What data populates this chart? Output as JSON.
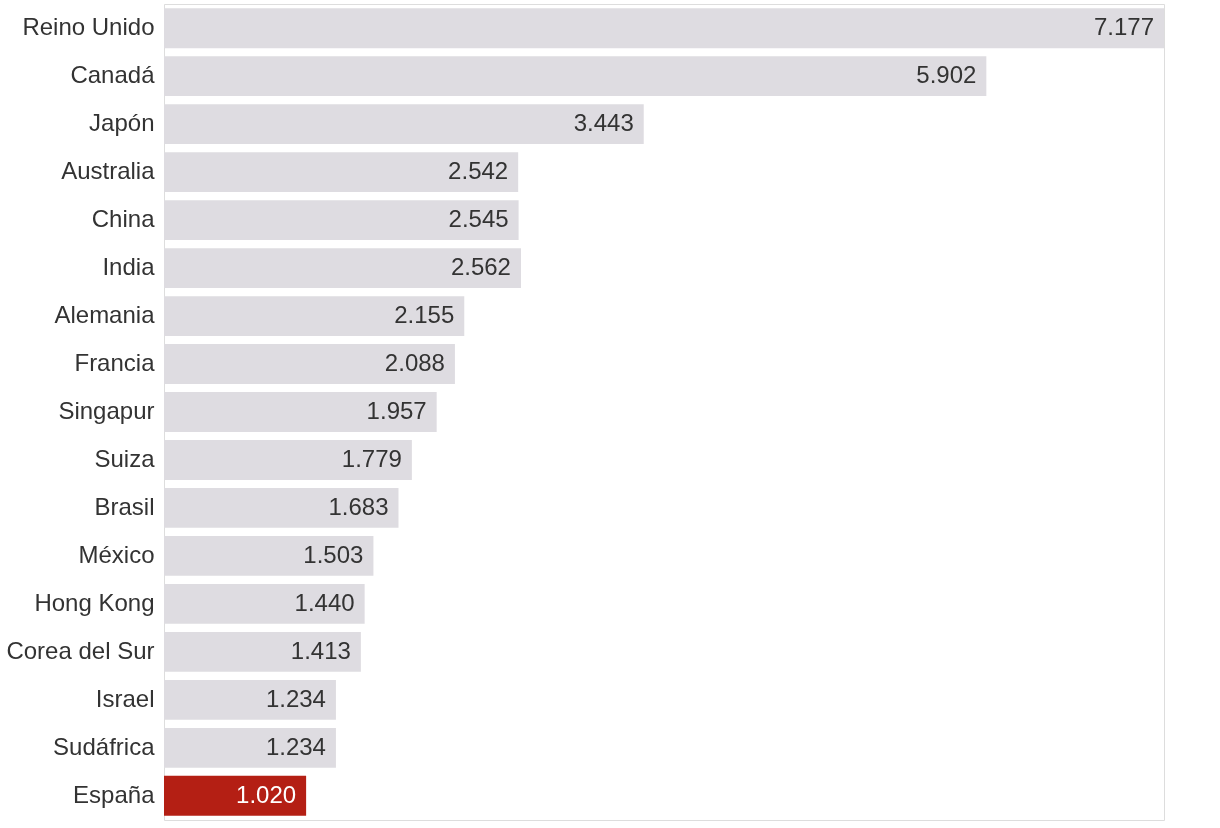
{
  "chart_data": {
    "type": "bar",
    "orientation": "horizontal",
    "categories": [
      "Reino Unido",
      "Canadá",
      "Japón",
      "Australia",
      "China",
      "India",
      "Alemania",
      "Francia",
      "Singapur",
      "Suiza",
      "Brasil",
      "México",
      "Hong Kong",
      "Corea del Sur",
      "Israel",
      "Sudáfrica",
      "España"
    ],
    "values": [
      7177,
      5902,
      3443,
      2542,
      2545,
      2562,
      2155,
      2088,
      1957,
      1779,
      1683,
      1503,
      1440,
      1413,
      1234,
      1234,
      1020
    ],
    "value_labels": [
      "7.177",
      "5.902",
      "3.443",
      "2.542",
      "2.545",
      "2.562",
      "2.155",
      "2.088",
      "1.957",
      "1.779",
      "1.683",
      "1.503",
      "1.440",
      "1.413",
      "1.234",
      "1.234",
      "1.020"
    ],
    "colors": [
      "#dedce1",
      "#dedce1",
      "#dedce1",
      "#dedce1",
      "#dedce1",
      "#dedce1",
      "#dedce1",
      "#dedce1",
      "#dedce1",
      "#dedce1",
      "#dedce1",
      "#dedce1",
      "#dedce1",
      "#dedce1",
      "#dedce1",
      "#dedce1",
      "#b41f14"
    ],
    "grid": false
  }
}
